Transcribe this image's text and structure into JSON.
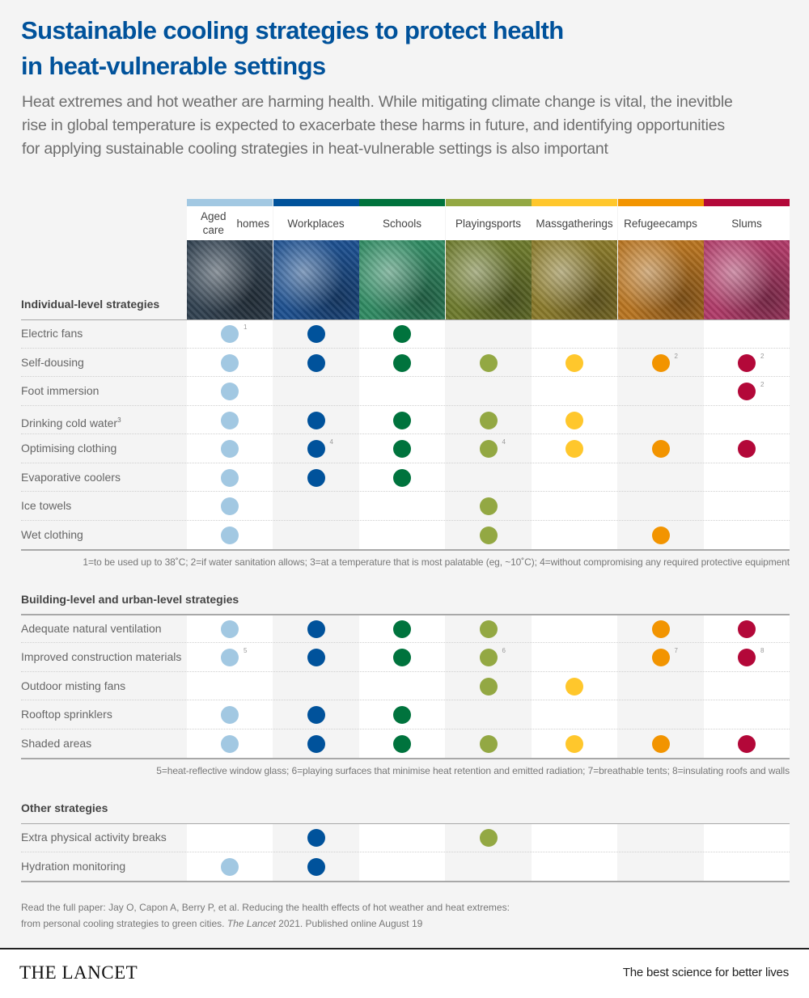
{
  "header": {
    "title_line1": "Sustainable cooling strategies to protect health",
    "title_line2": "in heat-vulnerable settings",
    "subtitle_line1": "Heat extremes and hot weather are harming health. While mitigating climate change is vital, the inevitble",
    "subtitle_line2": "rise in global temperature is expected to exacerbate these harms in future, and identifying opportunities",
    "subtitle_line3": "for applying sustainable cooling strategies in heat-vulnerable settings is also important"
  },
  "columns": [
    {
      "line1": "Aged care",
      "line2": "homes",
      "color": "#a2c8e2",
      "image": "elderly-hands-photo",
      "tint": "#30404f"
    },
    {
      "line1": "Workplaces",
      "line2": "",
      "color": "#00529b",
      "image": "construction-worker-photo",
      "tint": "#1c4f8f"
    },
    {
      "line1": "Schools",
      "line2": "",
      "color": "#00733d",
      "image": "schoolchildren-photo",
      "tint": "#2f8a62"
    },
    {
      "line1": "Playing",
      "line2": "sports",
      "color": "#93a843",
      "image": "wheelchair-basketball-photo",
      "tint": "#6d7a2c"
    },
    {
      "line1": "Mass",
      "line2": "gatherings",
      "color": "#ffc72c",
      "image": "pilgrimage-crowd-photo",
      "tint": "#8a7a2a"
    },
    {
      "line1": "Refugee",
      "line2": "camps",
      "color": "#f29400",
      "image": "refugee-tent-photo",
      "tint": "#b87420"
    },
    {
      "line1": "Slums",
      "line2": "",
      "color": "#b30839",
      "image": "slum-shack-photo",
      "tint": "#b03a68"
    }
  ],
  "sections": [
    {
      "title": "Individual-level strategies",
      "rows": [
        {
          "label": "Electric fans",
          "sup": "",
          "cells": [
            {
              "on": true,
              "fn": "1"
            },
            {
              "on": true,
              "fn": ""
            },
            {
              "on": true,
              "fn": ""
            },
            {
              "on": false,
              "fn": ""
            },
            {
              "on": false,
              "fn": ""
            },
            {
              "on": false,
              "fn": ""
            },
            {
              "on": false,
              "fn": ""
            }
          ]
        },
        {
          "label": "Self-dousing",
          "sup": "",
          "cells": [
            {
              "on": true,
              "fn": ""
            },
            {
              "on": true,
              "fn": ""
            },
            {
              "on": true,
              "fn": ""
            },
            {
              "on": true,
              "fn": ""
            },
            {
              "on": true,
              "fn": ""
            },
            {
              "on": true,
              "fn": "2"
            },
            {
              "on": true,
              "fn": "2"
            }
          ]
        },
        {
          "label": "Foot immersion",
          "sup": "",
          "cells": [
            {
              "on": true,
              "fn": ""
            },
            {
              "on": false,
              "fn": ""
            },
            {
              "on": false,
              "fn": ""
            },
            {
              "on": false,
              "fn": ""
            },
            {
              "on": false,
              "fn": ""
            },
            {
              "on": false,
              "fn": ""
            },
            {
              "on": true,
              "fn": "2"
            }
          ]
        },
        {
          "label": "Drinking cold water",
          "sup": "3",
          "cells": [
            {
              "on": true,
              "fn": ""
            },
            {
              "on": true,
              "fn": ""
            },
            {
              "on": true,
              "fn": ""
            },
            {
              "on": true,
              "fn": ""
            },
            {
              "on": true,
              "fn": ""
            },
            {
              "on": false,
              "fn": ""
            },
            {
              "on": false,
              "fn": ""
            }
          ]
        },
        {
          "label": "Optimising clothing",
          "sup": "",
          "cells": [
            {
              "on": true,
              "fn": ""
            },
            {
              "on": true,
              "fn": "4"
            },
            {
              "on": true,
              "fn": ""
            },
            {
              "on": true,
              "fn": "4"
            },
            {
              "on": true,
              "fn": ""
            },
            {
              "on": true,
              "fn": ""
            },
            {
              "on": true,
              "fn": ""
            }
          ]
        },
        {
          "label": "Evaporative coolers",
          "sup": "",
          "cells": [
            {
              "on": true,
              "fn": ""
            },
            {
              "on": true,
              "fn": ""
            },
            {
              "on": true,
              "fn": ""
            },
            {
              "on": false,
              "fn": ""
            },
            {
              "on": false,
              "fn": ""
            },
            {
              "on": false,
              "fn": ""
            },
            {
              "on": false,
              "fn": ""
            }
          ]
        },
        {
          "label": "Ice towels",
          "sup": "",
          "cells": [
            {
              "on": true,
              "fn": ""
            },
            {
              "on": false,
              "fn": ""
            },
            {
              "on": false,
              "fn": ""
            },
            {
              "on": true,
              "fn": ""
            },
            {
              "on": false,
              "fn": ""
            },
            {
              "on": false,
              "fn": ""
            },
            {
              "on": false,
              "fn": ""
            }
          ]
        },
        {
          "label": "Wet clothing",
          "sup": "",
          "cells": [
            {
              "on": true,
              "fn": ""
            },
            {
              "on": false,
              "fn": ""
            },
            {
              "on": false,
              "fn": ""
            },
            {
              "on": true,
              "fn": ""
            },
            {
              "on": false,
              "fn": ""
            },
            {
              "on": true,
              "fn": ""
            },
            {
              "on": false,
              "fn": ""
            }
          ]
        }
      ],
      "footnote": "1=to be used up to 38˚C; 2=if water sanitation allows; 3=at a temperature that is most palatable (eg, ~10˚C); 4=without compromising any required protective equipment"
    },
    {
      "title": "Building-level and urban-level strategies",
      "rows": [
        {
          "label": "Adequate natural ventilation",
          "sup": "",
          "cells": [
            {
              "on": true,
              "fn": ""
            },
            {
              "on": true,
              "fn": ""
            },
            {
              "on": true,
              "fn": ""
            },
            {
              "on": true,
              "fn": ""
            },
            {
              "on": false,
              "fn": ""
            },
            {
              "on": true,
              "fn": ""
            },
            {
              "on": true,
              "fn": ""
            }
          ]
        },
        {
          "label": "Improved construction materials",
          "sup": "",
          "cells": [
            {
              "on": true,
              "fn": "5"
            },
            {
              "on": true,
              "fn": ""
            },
            {
              "on": true,
              "fn": ""
            },
            {
              "on": true,
              "fn": "6"
            },
            {
              "on": false,
              "fn": ""
            },
            {
              "on": true,
              "fn": "7"
            },
            {
              "on": true,
              "fn": "8"
            }
          ]
        },
        {
          "label": "Outdoor misting fans",
          "sup": "",
          "cells": [
            {
              "on": false,
              "fn": ""
            },
            {
              "on": false,
              "fn": ""
            },
            {
              "on": false,
              "fn": ""
            },
            {
              "on": true,
              "fn": ""
            },
            {
              "on": true,
              "fn": ""
            },
            {
              "on": false,
              "fn": ""
            },
            {
              "on": false,
              "fn": ""
            }
          ]
        },
        {
          "label": "Rooftop sprinklers",
          "sup": "",
          "cells": [
            {
              "on": true,
              "fn": ""
            },
            {
              "on": true,
              "fn": ""
            },
            {
              "on": true,
              "fn": ""
            },
            {
              "on": false,
              "fn": ""
            },
            {
              "on": false,
              "fn": ""
            },
            {
              "on": false,
              "fn": ""
            },
            {
              "on": false,
              "fn": ""
            }
          ]
        },
        {
          "label": "Shaded areas",
          "sup": "",
          "cells": [
            {
              "on": true,
              "fn": ""
            },
            {
              "on": true,
              "fn": ""
            },
            {
              "on": true,
              "fn": ""
            },
            {
              "on": true,
              "fn": ""
            },
            {
              "on": true,
              "fn": ""
            },
            {
              "on": true,
              "fn": ""
            },
            {
              "on": true,
              "fn": ""
            }
          ]
        }
      ],
      "footnote": "5=heat-reflective window glass; 6=playing surfaces that minimise heat retention and emitted radiation; 7=breathable tents; 8=insulating roofs and walls"
    },
    {
      "title": "Other strategies",
      "rows": [
        {
          "label": "Extra physical activity breaks",
          "sup": "",
          "cells": [
            {
              "on": false,
              "fn": ""
            },
            {
              "on": true,
              "fn": ""
            },
            {
              "on": false,
              "fn": ""
            },
            {
              "on": true,
              "fn": ""
            },
            {
              "on": false,
              "fn": ""
            },
            {
              "on": false,
              "fn": ""
            },
            {
              "on": false,
              "fn": ""
            }
          ]
        },
        {
          "label": "Hydration monitoring",
          "sup": "",
          "cells": [
            {
              "on": true,
              "fn": ""
            },
            {
              "on": true,
              "fn": ""
            },
            {
              "on": false,
              "fn": ""
            },
            {
              "on": false,
              "fn": ""
            },
            {
              "on": false,
              "fn": ""
            },
            {
              "on": false,
              "fn": ""
            },
            {
              "on": false,
              "fn": ""
            }
          ]
        }
      ],
      "footnote": ""
    }
  ],
  "reference": {
    "line1": "Read the full paper: Jay O, Capon A, Berry P, et al. Reducing the health effects of hot weather and heat extremes:",
    "line2_pre": "from personal cooling strategies to green cities. ",
    "line2_journal": "The Lancet",
    "line2_post": " 2021. Published online August 19"
  },
  "footer": {
    "brand": "THE LANCET",
    "tagline": "The best science for better lives"
  },
  "colors": {
    "title": "#00529b",
    "page_bg": "#f4f4f4",
    "col_alt_bg": "#f4f4f4",
    "col_bg": "#ffffff"
  }
}
